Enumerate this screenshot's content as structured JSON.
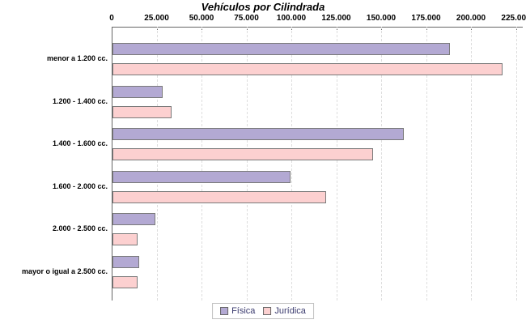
{
  "chart_data": {
    "type": "bar",
    "orientation": "horizontal",
    "title": "Vehículos por Cilindrada",
    "categories": [
      "menor a 1.200 cc.",
      "1.200 - 1.400 cc.",
      "1.400 - 1.600 cc.",
      "1.600 - 2.000 cc.",
      "2.000 - 2.500 cc.",
      "mayor o igual a 2.500 cc."
    ],
    "series": [
      {
        "name": "Física",
        "color": "#b3a9d3",
        "values": [
          188000,
          28000,
          162000,
          99000,
          24000,
          15000
        ]
      },
      {
        "name": "Jurídica",
        "color": "#fcd0d0",
        "values": [
          217000,
          33000,
          145000,
          119000,
          14000,
          14000
        ]
      }
    ],
    "x_axis": {
      "min": 0,
      "max": 225000,
      "tick_interval": 25000,
      "tick_labels": [
        "0",
        "25.000",
        "50.000",
        "75.000",
        "100.000",
        "125.000",
        "150.000",
        "175.000",
        "200.000",
        "225.000"
      ]
    },
    "legend": {
      "position": "bottom",
      "entries": [
        "Física",
        "Jurídica"
      ]
    },
    "grid": "vertical-dashed",
    "style": {
      "axis_color": "#666666",
      "gridline_color": "#dddddd",
      "bar_border_color": "#7a7a7a",
      "legend_text_color": "#3a3a6e",
      "title_color": "#000000"
    }
  }
}
